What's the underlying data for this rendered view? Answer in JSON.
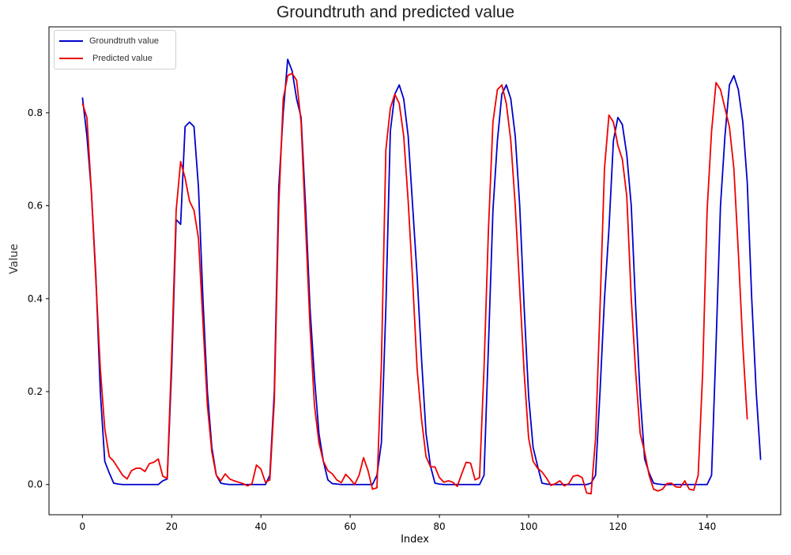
{
  "chart_data": {
    "type": "line",
    "title": "Groundtruth and predicted value",
    "xlabel": "Index",
    "ylabel": "Value",
    "xlim": [
      -7.5,
      156.5
    ],
    "ylim": [
      -0.065,
      0.985
    ],
    "xticks": [
      "0",
      "20",
      "40",
      "60",
      "80",
      "100",
      "120",
      "140"
    ],
    "yticks": [
      "0.0",
      "0.2",
      "0.4",
      "0.6",
      "0.8"
    ],
    "grid": false,
    "legend_position": "top-left",
    "series": [
      {
        "name": "Groundtruth value",
        "color": "#0000cc",
        "values": [
          0.833,
          0.75,
          0.63,
          0.45,
          0.2,
          0.05,
          0.025,
          0.003,
          0.001,
          0.0,
          0.0,
          0.0,
          0.0,
          0.0,
          0.0,
          0.0,
          0.0,
          0.0,
          0.008,
          0.012,
          0.25,
          0.57,
          0.56,
          0.77,
          0.78,
          0.77,
          0.64,
          0.4,
          0.2,
          0.08,
          0.02,
          0.003,
          0.001,
          0.0,
          0.0,
          0.0,
          0.0,
          0.0,
          0.0,
          0.0,
          0.0,
          0.0,
          0.02,
          0.2,
          0.64,
          0.8,
          0.915,
          0.89,
          0.83,
          0.79,
          0.6,
          0.38,
          0.23,
          0.11,
          0.05,
          0.01,
          0.002,
          0.001,
          0.0,
          0.0,
          0.0,
          0.0,
          0.0,
          0.0,
          0.0,
          0.0,
          0.02,
          0.09,
          0.38,
          0.76,
          0.84,
          0.86,
          0.83,
          0.75,
          0.6,
          0.45,
          0.27,
          0.11,
          0.04,
          0.003,
          0.001,
          0.0,
          0.0,
          0.0,
          0.0,
          0.0,
          0.0,
          0.0,
          0.0,
          0.0,
          0.02,
          0.3,
          0.59,
          0.74,
          0.84,
          0.86,
          0.83,
          0.75,
          0.6,
          0.38,
          0.19,
          0.08,
          0.04,
          0.003,
          0.001,
          0.0,
          0.0,
          0.0,
          0.0,
          0.0,
          0.0,
          0.0,
          0.0,
          0.0,
          0.003,
          0.02,
          0.2,
          0.4,
          0.55,
          0.74,
          0.79,
          0.775,
          0.71,
          0.6,
          0.38,
          0.19,
          0.055,
          0.025,
          0.003,
          0.001,
          0.0,
          0.0,
          0.0,
          0.0,
          0.0,
          0.0,
          0.0,
          0.0,
          0.0,
          0.0,
          0.0,
          0.02,
          0.3,
          0.6,
          0.75,
          0.86,
          0.88,
          0.85,
          0.78,
          0.65,
          0.4,
          0.2,
          0.053
        ]
      },
      {
        "name": "Predicted value",
        "color": "#ee0000",
        "values": [
          0.82,
          0.79,
          0.63,
          0.44,
          0.25,
          0.12,
          0.06,
          0.05,
          0.035,
          0.02,
          0.012,
          0.03,
          0.035,
          0.035,
          0.028,
          0.045,
          0.048,
          0.055,
          0.018,
          0.013,
          0.28,
          0.59,
          0.695,
          0.66,
          0.61,
          0.59,
          0.53,
          0.35,
          0.17,
          0.07,
          0.02,
          0.008,
          0.023,
          0.012,
          0.008,
          0.005,
          0.002,
          -0.003,
          0.002,
          0.042,
          0.033,
          0.005,
          0.01,
          0.18,
          0.6,
          0.83,
          0.88,
          0.885,
          0.87,
          0.78,
          0.56,
          0.34,
          0.17,
          0.09,
          0.05,
          0.03,
          0.023,
          0.01,
          0.004,
          0.022,
          0.012,
          0.0,
          0.02,
          0.058,
          0.03,
          -0.01,
          -0.007,
          0.26,
          0.72,
          0.81,
          0.84,
          0.82,
          0.75,
          0.61,
          0.44,
          0.25,
          0.14,
          0.06,
          0.038,
          0.038,
          0.015,
          0.005,
          0.008,
          0.005,
          -0.004,
          0.023,
          0.048,
          0.046,
          0.01,
          0.015,
          0.25,
          0.55,
          0.78,
          0.85,
          0.86,
          0.82,
          0.74,
          0.6,
          0.42,
          0.24,
          0.1,
          0.05,
          0.035,
          0.027,
          0.014,
          -0.002,
          0.002,
          0.008,
          -0.003,
          0.002,
          0.018,
          0.02,
          0.015,
          -0.018,
          -0.02,
          0.1,
          0.38,
          0.68,
          0.795,
          0.78,
          0.73,
          0.7,
          0.62,
          0.4,
          0.24,
          0.11,
          0.07,
          0.02,
          -0.01,
          -0.014,
          -0.01,
          0.002,
          0.003,
          -0.005,
          -0.006,
          0.008,
          -0.01,
          -0.012,
          0.02,
          0.24,
          0.59,
          0.76,
          0.865,
          0.85,
          0.81,
          0.77,
          0.68,
          0.5,
          0.3,
          0.14
        ]
      }
    ]
  }
}
